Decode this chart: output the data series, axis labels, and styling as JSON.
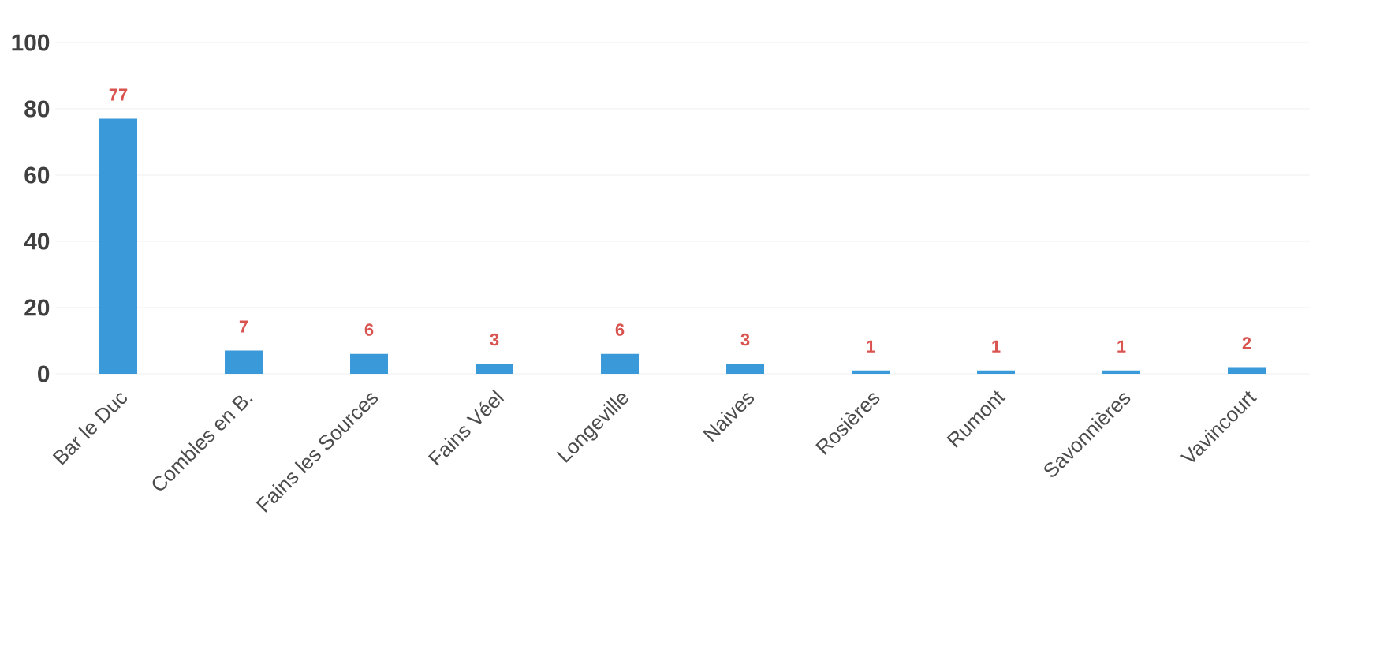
{
  "chart_data": {
    "type": "bar",
    "categories": [
      "Bar le Duc",
      "Combles en B.",
      "Fains les Sources",
      "Fains Véel",
      "Longeville",
      "Naives",
      "Rosières",
      "Rumont",
      "Savonnières",
      "Vavincourt"
    ],
    "values": [
      77,
      7,
      6,
      3,
      6,
      3,
      1,
      1,
      1,
      2
    ],
    "color": "#3a9ad9",
    "data_labels": true,
    "grid": "y",
    "ylim": [
      0,
      100
    ],
    "yticks": [
      0,
      20,
      40,
      60,
      80,
      100
    ]
  }
}
